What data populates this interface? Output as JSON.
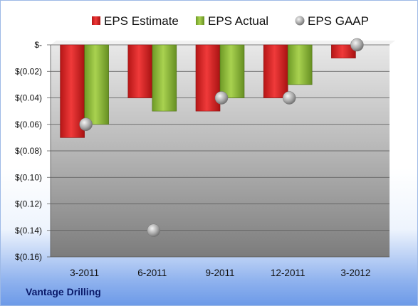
{
  "company": "Vantage Drilling",
  "colors": {
    "estimate": "#d42222",
    "actual": "#8cb83a",
    "gaap": "#bdbdbd"
  },
  "chart_data": {
    "type": "bar",
    "title": "",
    "xlabel": "",
    "ylabel": "",
    "categories": [
      "3-2011",
      "6-2011",
      "9-2011",
      "12-2011",
      "3-2012"
    ],
    "series": [
      {
        "name": "EPS Estimate",
        "kind": "bar",
        "values": [
          -0.07,
          -0.04,
          -0.05,
          -0.04,
          -0.01
        ]
      },
      {
        "name": "EPS Actual",
        "kind": "bar",
        "values": [
          -0.06,
          -0.05,
          -0.04,
          -0.03,
          null
        ]
      },
      {
        "name": "EPS GAAP",
        "kind": "marker",
        "values": [
          -0.06,
          -0.14,
          -0.04,
          -0.04,
          0.0
        ]
      }
    ],
    "ylim": [
      -0.16,
      0
    ],
    "yticks": [
      0,
      -0.02,
      -0.04,
      -0.06,
      -0.08,
      -0.1,
      -0.12,
      -0.14,
      -0.16
    ],
    "ytick_labels": [
      "$-",
      "$(0.02)",
      "$(0.04)",
      "$(0.06)",
      "$(0.08)",
      "$(0.10)",
      "$(0.12)",
      "$(0.14)",
      "$(0.16)"
    ],
    "grid": true,
    "legend_position": "top"
  }
}
